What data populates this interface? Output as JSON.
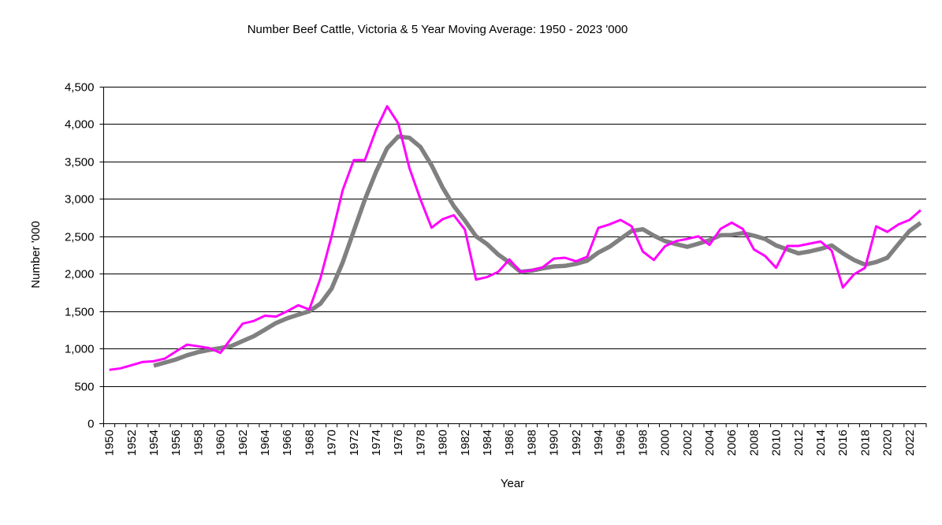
{
  "chart_data": {
    "type": "line",
    "title": "Number Beef Cattle, Victoria & 5 Year Moving Average: 1950 -  2023 '000",
    "xlabel": "Year",
    "ylabel": "Number '000",
    "ylim": [
      0,
      4500
    ],
    "yticks": [
      0,
      500,
      1000,
      1500,
      2000,
      2500,
      3000,
      3500,
      4000,
      4500
    ],
    "ytick_labels": [
      "0",
      "500",
      "1,000",
      "1,500",
      "2,000",
      "2,500",
      "3,000",
      "3,500",
      "4,000",
      "4,500"
    ],
    "grid": true,
    "legend": "none",
    "x": [
      1950,
      1951,
      1952,
      1953,
      1954,
      1955,
      1956,
      1957,
      1958,
      1959,
      1960,
      1961,
      1962,
      1963,
      1964,
      1965,
      1966,
      1967,
      1968,
      1969,
      1970,
      1971,
      1972,
      1973,
      1974,
      1975,
      1976,
      1977,
      1978,
      1979,
      1980,
      1981,
      1982,
      1983,
      1984,
      1985,
      1986,
      1987,
      1988,
      1989,
      1990,
      1991,
      1992,
      1993,
      1994,
      1995,
      1996,
      1997,
      1998,
      1999,
      2000,
      2001,
      2002,
      2003,
      2004,
      2005,
      2006,
      2007,
      2008,
      2009,
      2010,
      2011,
      2012,
      2013,
      2014,
      2015,
      2016,
      2017,
      2018,
      2019,
      2020,
      2021,
      2022,
      2023
    ],
    "xtick_labels": [
      "1950",
      "1952",
      "1954",
      "1956",
      "1958",
      "1960",
      "1962",
      "1964",
      "1966",
      "1968",
      "1970",
      "1972",
      "1974",
      "1976",
      "1978",
      "1980",
      "1982",
      "1984",
      "1986",
      "1988",
      "1990",
      "1992",
      "1994",
      "1996",
      "1998",
      "2000",
      "2002",
      "2004",
      "2006",
      "2008",
      "2010",
      "2012",
      "2014",
      "2016",
      "2018",
      "2020",
      "2022"
    ],
    "series": [
      {
        "name": "Number Beef Cattle",
        "color": "#ff00ff",
        "values": [
          714,
          735,
          777,
          820,
          830,
          865,
          960,
          1052,
          1030,
          1005,
          942,
          1140,
          1332,
          1368,
          1438,
          1427,
          1498,
          1579,
          1522,
          1939,
          2500,
          3115,
          3519,
          3519,
          3923,
          4239,
          4011,
          3414,
          2993,
          2616,
          2729,
          2782,
          2588,
          1921,
          1956,
          2026,
          2191,
          2026,
          2044,
          2086,
          2202,
          2213,
          2167,
          2226,
          2613,
          2659,
          2719,
          2634,
          2297,
          2184,
          2367,
          2437,
          2465,
          2500,
          2385,
          2600,
          2683,
          2599,
          2325,
          2237,
          2079,
          2371,
          2371,
          2402,
          2430,
          2308,
          1816,
          1991,
          2079,
          2634,
          2560,
          2659,
          2719,
          2850
        ]
      },
      {
        "name": "5 Year Moving Average",
        "color": "#808080",
        "values": [
          null,
          null,
          null,
          null,
          770,
          812,
          854,
          910,
          952,
          981,
          1005,
          1034,
          1100,
          1164,
          1252,
          1340,
          1403,
          1452,
          1498,
          1600,
          1800,
          2150,
          2571,
          2993,
          3361,
          3677,
          3835,
          3817,
          3694,
          3449,
          3150,
          2904,
          2711,
          2500,
          2395,
          2255,
          2150,
          2026,
          2040,
          2072,
          2097,
          2105,
          2132,
          2174,
          2283,
          2360,
          2466,
          2571,
          2595,
          2508,
          2437,
          2395,
          2360,
          2402,
          2448,
          2515,
          2518,
          2543,
          2508,
          2465,
          2377,
          2325,
          2272,
          2297,
          2332,
          2377,
          2272,
          2184,
          2121,
          2156,
          2213,
          2395,
          2571,
          2680
        ]
      }
    ]
  }
}
